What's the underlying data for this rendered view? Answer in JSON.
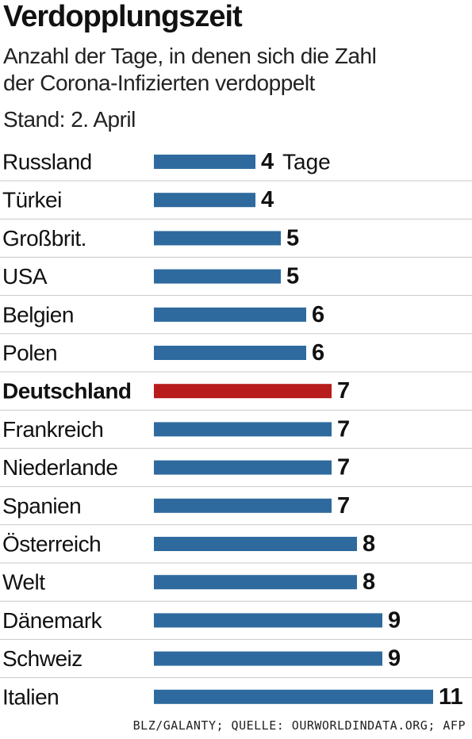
{
  "header": {
    "title": "Verdopplungszeit",
    "subtitle_line1": "Anzahl der Tage, in denen sich die Zahl",
    "subtitle_line2": "der Corona-Infizierten verdoppelt",
    "subtitle_line3": "Stand: 2. April"
  },
  "source": "BLZ/GALANTY; QUELLE: OURWORLDINDATA.ORG; AFP",
  "colors": {
    "bar": "#2e6a9e",
    "highlight": "#b81c1c",
    "divider": "#c8c8c8"
  },
  "chart_data": {
    "type": "bar",
    "orientation": "horizontal",
    "unit_label": "Tage",
    "highlight": "Deutschland",
    "categories": [
      "Russland",
      "Türkei",
      "Großbrit.",
      "USA",
      "Belgien",
      "Polen",
      "Deutschland",
      "Frankreich",
      "Niederlande",
      "Spanien",
      "Österreich",
      "Welt",
      "Dänemark",
      "Schweiz",
      "Italien"
    ],
    "values": [
      4,
      4,
      5,
      5,
      6,
      6,
      7,
      7,
      7,
      7,
      8,
      8,
      9,
      9,
      11
    ],
    "xlim": [
      0,
      11
    ],
    "grid": false,
    "legend": "none"
  }
}
